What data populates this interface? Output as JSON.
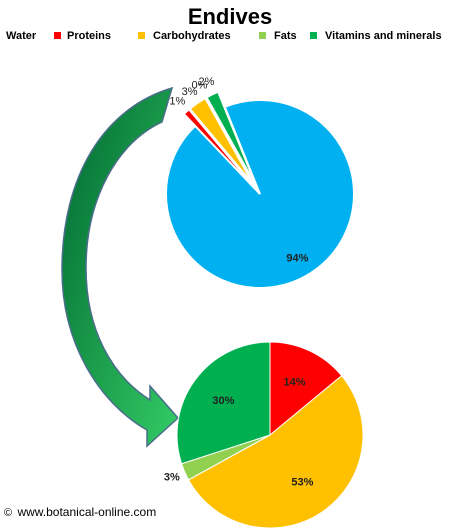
{
  "title": "Endives",
  "footer": {
    "copyright_symbol": "©",
    "site": "www.botanical-online.com"
  },
  "colors": {
    "water": "#00b0f0",
    "proteins": "#ff0000",
    "carbohydrates": "#ffc000",
    "fats": "#92d050",
    "vitamins_minerals": "#00b050",
    "arrow_dark": "#007a3d",
    "arrow_light": "#33cc66"
  },
  "decor": {
    "arrow": "curved-arrow-icon"
  },
  "chart_data": [
    {
      "type": "pie",
      "title": "Endives",
      "legend_position": "top",
      "legend": [
        "Water",
        "Proteins",
        "Carbohydrates",
        "Fats",
        "Vitamins and minerals"
      ],
      "categories": [
        "Water",
        "Proteins",
        "Carbohydrates",
        "Fats",
        "Vitamins and minerals"
      ],
      "values": [
        94,
        1,
        3,
        0,
        2
      ],
      "labels": [
        "94%",
        "1%",
        "3%",
        "0%",
        "2%"
      ],
      "exploded": [
        "Proteins",
        "Carbohydrates",
        "Fats",
        "Vitamins and minerals"
      ]
    },
    {
      "type": "pie",
      "categories": [
        "Proteins",
        "Carbohydrates",
        "Fats",
        "Vitamins and minerals"
      ],
      "values": [
        14,
        53,
        3,
        30
      ],
      "labels": [
        "14%",
        "53%",
        "3%",
        "30%"
      ]
    }
  ]
}
